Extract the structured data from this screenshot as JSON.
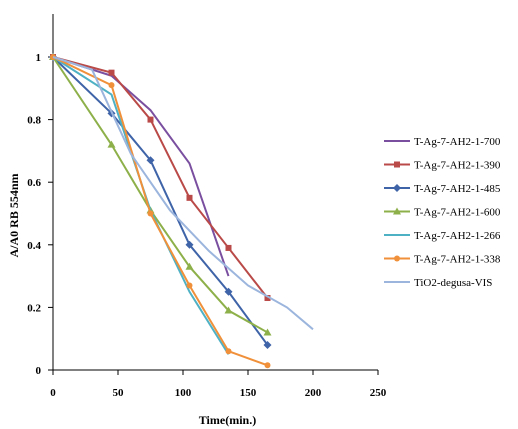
{
  "chart_data": {
    "type": "line",
    "xlabel": "Time(min.)",
    "ylabel": "A/A0 RB 554nm",
    "xlim": [
      0,
      250
    ],
    "ylim": [
      0,
      1
    ],
    "xticks": [
      "0",
      "50",
      "100",
      "150",
      "200",
      "250"
    ],
    "yticks": [
      "0",
      "0.2",
      "0.4",
      "0.6",
      "0.8",
      "1"
    ],
    "grid": false,
    "legend_position": "right",
    "series": [
      {
        "name": "T-Ag-7-AH2-1-700",
        "color": "#7a4fa0",
        "marker": "line",
        "x": [
          0,
          45,
          75,
          105,
          135
        ],
        "y": [
          1.0,
          0.94,
          0.83,
          0.66,
          0.3
        ]
      },
      {
        "name": "T-Ag-7-AH2-1-390",
        "color": "#b94a48",
        "marker": "square",
        "x": [
          0,
          45,
          75,
          105,
          135,
          165
        ],
        "y": [
          1.0,
          0.95,
          0.8,
          0.55,
          0.39,
          0.23
        ]
      },
      {
        "name": "T-Ag-7-AH2-1-485",
        "color": "#3f64a8",
        "marker": "diamond",
        "x": [
          0,
          45,
          75,
          105,
          135,
          165
        ],
        "y": [
          1.0,
          0.82,
          0.67,
          0.4,
          0.25,
          0.08
        ]
      },
      {
        "name": "T-Ag-7-AH2-1-600",
        "color": "#8eb04a",
        "marker": "triangle",
        "x": [
          0,
          45,
          75,
          105,
          135,
          165
        ],
        "y": [
          1.0,
          0.72,
          0.51,
          0.33,
          0.19,
          0.12
        ]
      },
      {
        "name": "T-Ag-7-AH2-1-266",
        "color": "#4fb1c4",
        "marker": "line",
        "x": [
          0,
          45,
          75,
          105,
          135
        ],
        "y": [
          1.0,
          0.88,
          0.51,
          0.25,
          0.05
        ]
      },
      {
        "name": "T-Ag-7-AH2-1-338",
        "color": "#f0903a",
        "marker": "circle",
        "x": [
          0,
          45,
          75,
          105,
          135,
          165
        ],
        "y": [
          1.0,
          0.91,
          0.5,
          0.27,
          0.06,
          0.015
        ]
      },
      {
        "name": "TiO2-degusa-VIS",
        "color": "#9bb5dd",
        "marker": "line",
        "x": [
          0,
          30,
          60,
          90,
          120,
          150,
          180,
          200
        ],
        "y": [
          1.0,
          0.96,
          0.69,
          0.51,
          0.38,
          0.27,
          0.2,
          0.13
        ]
      }
    ]
  }
}
